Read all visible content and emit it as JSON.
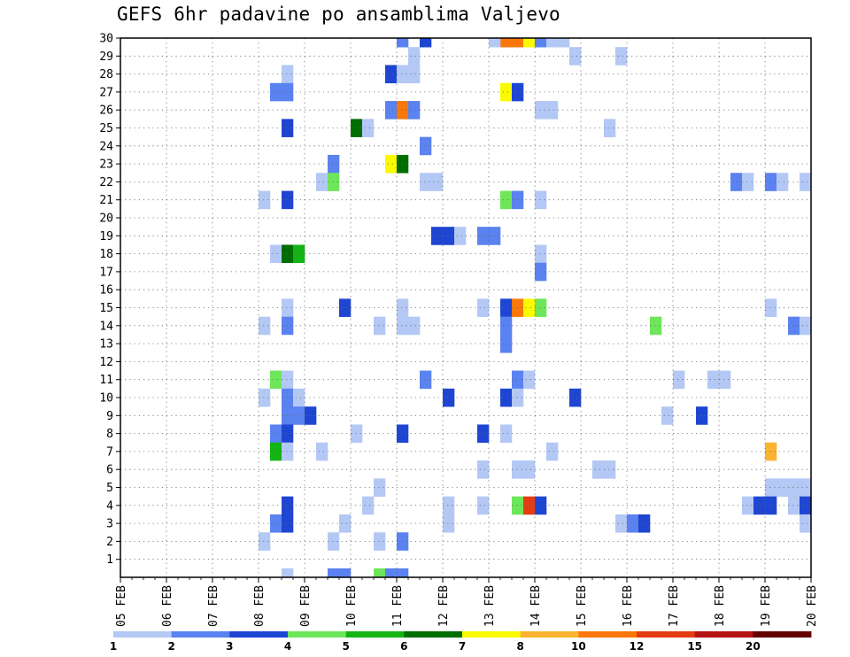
{
  "title": "GEFS 6hr padavine po ansamblima Valjevo",
  "chart_data": {
    "type": "heatmap",
    "title": "GEFS 6hr padavine po ansamblima Valjevo",
    "xlabel": "",
    "ylabel": "",
    "x_range": [
      "2020-02-05 00:00",
      "2020-02-20 00:00"
    ],
    "x_tick_labels": [
      "05 FEB",
      "06 FEB",
      "07 FEB",
      "08 FEB",
      "09 FEB",
      "10 FEB",
      "11 FEB",
      "12 FEB",
      "13 FEB",
      "14 FEB",
      "15 FEB",
      "16 FEB",
      "17 FEB",
      "18 FEB",
      "19 FEB",
      "20 FEB"
    ],
    "y_range": [
      0,
      30
    ],
    "y_tick_labels": [
      "1",
      "2",
      "3",
      "4",
      "5",
      "6",
      "7",
      "8",
      "9",
      "10",
      "11",
      "12",
      "13",
      "14",
      "15",
      "16",
      "17",
      "18",
      "19",
      "20",
      "21",
      "22",
      "23",
      "24",
      "25",
      "26",
      "27",
      "28",
      "29",
      "30"
    ],
    "grid": true,
    "colorbar": {
      "placement": "bottom",
      "labels": [
        "1",
        "2",
        "3",
        "4",
        "5",
        "6",
        "7",
        "8",
        "10",
        "12",
        "15",
        "20"
      ],
      "bins": [
        {
          "min": 1,
          "max": 2,
          "color": "#b4c8f5"
        },
        {
          "min": 2,
          "max": 3,
          "color": "#5a82f0"
        },
        {
          "min": 3,
          "max": 4,
          "color": "#1e46d2"
        },
        {
          "min": 4,
          "max": 5,
          "color": "#6ee65a"
        },
        {
          "min": 5,
          "max": 6,
          "color": "#14b414"
        },
        {
          "min": 6,
          "max": 7,
          "color": "#006e00"
        },
        {
          "min": 7,
          "max": 8,
          "color": "#fafa00"
        },
        {
          "min": 8,
          "max": 10,
          "color": "#fab432"
        },
        {
          "min": 10,
          "max": 12,
          "color": "#fa780a"
        },
        {
          "min": 12,
          "max": 15,
          "color": "#e63c14"
        },
        {
          "min": 15,
          "max": 20,
          "color": "#b41414"
        },
        {
          "min": 20,
          "max": null,
          "color": "#640000"
        }
      ]
    },
    "cells": [
      {
        "t": "2020-02-13 06:00",
        "m": 30,
        "v": 10.5
      },
      {
        "t": "2020-02-13 12:00",
        "m": 30,
        "v": 10.5
      },
      {
        "t": "2020-02-13 18:00",
        "m": 30,
        "v": 7.5
      },
      {
        "t": "2020-02-14 00:00",
        "m": 30,
        "v": 2.5
      },
      {
        "t": "2020-02-14 06:00",
        "m": 30,
        "v": 1.5
      },
      {
        "t": "2020-02-14 12:00",
        "m": 30,
        "v": 1.5
      },
      {
        "t": "2020-02-13 00:00",
        "m": 30,
        "v": 1.5
      },
      {
        "t": "2020-02-11 00:00",
        "m": 30,
        "v": 2.5
      },
      {
        "t": "2020-02-11 12:00",
        "m": 30,
        "v": 3.5
      },
      {
        "t": "2020-02-11 06:00",
        "m": 29,
        "v": 1.5
      },
      {
        "t": "2020-02-14 18:00",
        "m": 29,
        "v": 1.5
      },
      {
        "t": "2020-02-15 18:00",
        "m": 29,
        "v": 1.5
      },
      {
        "t": "2020-02-08 12:00",
        "m": 28,
        "v": 1.5
      },
      {
        "t": "2020-02-10 18:00",
        "m": 28,
        "v": 3.5
      },
      {
        "t": "2020-02-11 00:00",
        "m": 28,
        "v": 1.5
      },
      {
        "t": "2020-02-11 06:00",
        "m": 28,
        "v": 1.5
      },
      {
        "t": "2020-02-08 06:00",
        "m": 27,
        "v": 2.5
      },
      {
        "t": "2020-02-08 12:00",
        "m": 27,
        "v": 2.5
      },
      {
        "t": "2020-02-13 06:00",
        "m": 27,
        "v": 7.5
      },
      {
        "t": "2020-02-13 12:00",
        "m": 27,
        "v": 3.5
      },
      {
        "t": "2020-02-10 18:00",
        "m": 26,
        "v": 2.5
      },
      {
        "t": "2020-02-11 00:00",
        "m": 26,
        "v": 10.5
      },
      {
        "t": "2020-02-11 06:00",
        "m": 26,
        "v": 2.5
      },
      {
        "t": "2020-02-14 00:00",
        "m": 26,
        "v": 1.5
      },
      {
        "t": "2020-02-14 06:00",
        "m": 26,
        "v": 1.5
      },
      {
        "t": "2020-02-08 12:00",
        "m": 25,
        "v": 3.5
      },
      {
        "t": "2020-02-10 00:00",
        "m": 25,
        "v": 6.5
      },
      {
        "t": "2020-02-10 06:00",
        "m": 25,
        "v": 1.5
      },
      {
        "t": "2020-02-15 12:00",
        "m": 25,
        "v": 1.5
      },
      {
        "t": "2020-02-11 12:00",
        "m": 24,
        "v": 2.5
      },
      {
        "t": "2020-02-09 12:00",
        "m": 23,
        "v": 2.5
      },
      {
        "t": "2020-02-10 18:00",
        "m": 23,
        "v": 7.5
      },
      {
        "t": "2020-02-11 00:00",
        "m": 23,
        "v": 6.5
      },
      {
        "t": "2020-02-09 06:00",
        "m": 22,
        "v": 1.5
      },
      {
        "t": "2020-02-09 12:00",
        "m": 22,
        "v": 4.5
      },
      {
        "t": "2020-02-11 12:00",
        "m": 22,
        "v": 1.5
      },
      {
        "t": "2020-02-11 18:00",
        "m": 22,
        "v": 1.5
      },
      {
        "t": "2020-02-18 06:00",
        "m": 22,
        "v": 2.5
      },
      {
        "t": "2020-02-18 12:00",
        "m": 22,
        "v": 1.5
      },
      {
        "t": "2020-02-19 00:00",
        "m": 22,
        "v": 2.5
      },
      {
        "t": "2020-02-19 06:00",
        "m": 22,
        "v": 1.5
      },
      {
        "t": "2020-02-19 18:00",
        "m": 22,
        "v": 1.5
      },
      {
        "t": "2020-02-08 00:00",
        "m": 21,
        "v": 1.5
      },
      {
        "t": "2020-02-08 12:00",
        "m": 21,
        "v": 3.5
      },
      {
        "t": "2020-02-13 06:00",
        "m": 21,
        "v": 4.5
      },
      {
        "t": "2020-02-13 12:00",
        "m": 21,
        "v": 2.5
      },
      {
        "t": "2020-02-14 00:00",
        "m": 21,
        "v": 1.5
      },
      {
        "t": "2020-02-11 18:00",
        "m": 19,
        "v": 3.5
      },
      {
        "t": "2020-02-12 00:00",
        "m": 19,
        "v": 3.5
      },
      {
        "t": "2020-02-12 06:00",
        "m": 19,
        "v": 1.5
      },
      {
        "t": "2020-02-12 18:00",
        "m": 19,
        "v": 2.5
      },
      {
        "t": "2020-02-13 00:00",
        "m": 19,
        "v": 2.5
      },
      {
        "t": "2020-02-08 06:00",
        "m": 18,
        "v": 1.5
      },
      {
        "t": "2020-02-08 12:00",
        "m": 18,
        "v": 6.5
      },
      {
        "t": "2020-02-08 18:00",
        "m": 18,
        "v": 5.5
      },
      {
        "t": "2020-02-14 00:00",
        "m": 18,
        "v": 1.5
      },
      {
        "t": "2020-02-14 00:00",
        "m": 17,
        "v": 2.5
      },
      {
        "t": "2020-02-08 12:00",
        "m": 15,
        "v": 1.5
      },
      {
        "t": "2020-02-09 18:00",
        "m": 15,
        "v": 3.5
      },
      {
        "t": "2020-02-11 00:00",
        "m": 15,
        "v": 1.5
      },
      {
        "t": "2020-02-12 18:00",
        "m": 15,
        "v": 1.5
      },
      {
        "t": "2020-02-13 06:00",
        "m": 15,
        "v": 3.5
      },
      {
        "t": "2020-02-13 12:00",
        "m": 15,
        "v": 10.5
      },
      {
        "t": "2020-02-13 18:00",
        "m": 15,
        "v": 7.5
      },
      {
        "t": "2020-02-14 00:00",
        "m": 15,
        "v": 4.5
      },
      {
        "t": "2020-02-19 00:00",
        "m": 15,
        "v": 1.5
      },
      {
        "t": "2020-02-08 00:00",
        "m": 14,
        "v": 1.5
      },
      {
        "t": "2020-02-08 12:00",
        "m": 14,
        "v": 2.5
      },
      {
        "t": "2020-02-10 12:00",
        "m": 14,
        "v": 1.5
      },
      {
        "t": "2020-02-11 00:00",
        "m": 14,
        "v": 1.5
      },
      {
        "t": "2020-02-11 06:00",
        "m": 14,
        "v": 1.5
      },
      {
        "t": "2020-02-13 06:00",
        "m": 14,
        "v": 2.5
      },
      {
        "t": "2020-02-16 12:00",
        "m": 14,
        "v": 4.5
      },
      {
        "t": "2020-02-19 12:00",
        "m": 14,
        "v": 2.5
      },
      {
        "t": "2020-02-19 18:00",
        "m": 14,
        "v": 1.5
      },
      {
        "t": "2020-02-13 06:00",
        "m": 13,
        "v": 2.5
      },
      {
        "t": "2020-02-08 06:00",
        "m": 11,
        "v": 4.5
      },
      {
        "t": "2020-02-08 12:00",
        "m": 11,
        "v": 1.5
      },
      {
        "t": "2020-02-11 12:00",
        "m": 11,
        "v": 2.5
      },
      {
        "t": "2020-02-13 12:00",
        "m": 11,
        "v": 2.5
      },
      {
        "t": "2020-02-13 18:00",
        "m": 11,
        "v": 1.5
      },
      {
        "t": "2020-02-17 00:00",
        "m": 11,
        "v": 1.5
      },
      {
        "t": "2020-02-17 18:00",
        "m": 11,
        "v": 1.5
      },
      {
        "t": "2020-02-18 00:00",
        "m": 11,
        "v": 1.5
      },
      {
        "t": "2020-02-08 00:00",
        "m": 10,
        "v": 1.5
      },
      {
        "t": "2020-02-08 12:00",
        "m": 10,
        "v": 2.5
      },
      {
        "t": "2020-02-08 18:00",
        "m": 10,
        "v": 1.5
      },
      {
        "t": "2020-02-12 00:00",
        "m": 10,
        "v": 3.5
      },
      {
        "t": "2020-02-13 06:00",
        "m": 10,
        "v": 3.5
      },
      {
        "t": "2020-02-13 12:00",
        "m": 10,
        "v": 1.5
      },
      {
        "t": "2020-02-14 18:00",
        "m": 10,
        "v": 3.5
      },
      {
        "t": "2020-02-08 12:00",
        "m": 9,
        "v": 2.5
      },
      {
        "t": "2020-02-08 18:00",
        "m": 9,
        "v": 2.5
      },
      {
        "t": "2020-02-09 00:00",
        "m": 9,
        "v": 3.5
      },
      {
        "t": "2020-02-16 18:00",
        "m": 9,
        "v": 1.5
      },
      {
        "t": "2020-02-17 12:00",
        "m": 9,
        "v": 3.5
      },
      {
        "t": "2020-02-08 06:00",
        "m": 8,
        "v": 2.5
      },
      {
        "t": "2020-02-08 12:00",
        "m": 8,
        "v": 3.5
      },
      {
        "t": "2020-02-10 00:00",
        "m": 8,
        "v": 1.5
      },
      {
        "t": "2020-02-11 00:00",
        "m": 8,
        "v": 3.5
      },
      {
        "t": "2020-02-12 18:00",
        "m": 8,
        "v": 3.5
      },
      {
        "t": "2020-02-13 06:00",
        "m": 8,
        "v": 1.5
      },
      {
        "t": "2020-02-08 06:00",
        "m": 7,
        "v": 5.5
      },
      {
        "t": "2020-02-08 12:00",
        "m": 7,
        "v": 1.5
      },
      {
        "t": "2020-02-09 06:00",
        "m": 7,
        "v": 1.5
      },
      {
        "t": "2020-02-14 06:00",
        "m": 7,
        "v": 1.5
      },
      {
        "t": "2020-02-19 00:00",
        "m": 7,
        "v": 9
      },
      {
        "t": "2020-02-12 18:00",
        "m": 6,
        "v": 1.5
      },
      {
        "t": "2020-02-13 12:00",
        "m": 6,
        "v": 1.5
      },
      {
        "t": "2020-02-13 18:00",
        "m": 6,
        "v": 1.5
      },
      {
        "t": "2020-02-15 06:00",
        "m": 6,
        "v": 1.5
      },
      {
        "t": "2020-02-15 12:00",
        "m": 6,
        "v": 1.5
      },
      {
        "t": "2020-02-10 12:00",
        "m": 5,
        "v": 1.5
      },
      {
        "t": "2020-02-19 00:00",
        "m": 5,
        "v": 1.5
      },
      {
        "t": "2020-02-19 06:00",
        "m": 5,
        "v": 1.5
      },
      {
        "t": "2020-02-19 12:00",
        "m": 5,
        "v": 1.5
      },
      {
        "t": "2020-02-19 18:00",
        "m": 5,
        "v": 1.5
      },
      {
        "t": "2020-02-08 12:00",
        "m": 4,
        "v": 3.5
      },
      {
        "t": "2020-02-10 06:00",
        "m": 4,
        "v": 1.5
      },
      {
        "t": "2020-02-12 00:00",
        "m": 4,
        "v": 1.5
      },
      {
        "t": "2020-02-12 18:00",
        "m": 4,
        "v": 1.5
      },
      {
        "t": "2020-02-13 12:00",
        "m": 4,
        "v": 4.5
      },
      {
        "t": "2020-02-13 18:00",
        "m": 4,
        "v": 13.5
      },
      {
        "t": "2020-02-14 00:00",
        "m": 4,
        "v": 3.5
      },
      {
        "t": "2020-02-18 12:00",
        "m": 4,
        "v": 1.5
      },
      {
        "t": "2020-02-18 18:00",
        "m": 4,
        "v": 3.5
      },
      {
        "t": "2020-02-19 00:00",
        "m": 4,
        "v": 3.5
      },
      {
        "t": "2020-02-19 12:00",
        "m": 4,
        "v": 1.5
      },
      {
        "t": "2020-02-19 18:00",
        "m": 4,
        "v": 3.5
      },
      {
        "t": "2020-02-08 06:00",
        "m": 3,
        "v": 2.5
      },
      {
        "t": "2020-02-08 12:00",
        "m": 3,
        "v": 3.5
      },
      {
        "t": "2020-02-09 18:00",
        "m": 3,
        "v": 1.5
      },
      {
        "t": "2020-02-12 00:00",
        "m": 3,
        "v": 1.5
      },
      {
        "t": "2020-02-15 18:00",
        "m": 3,
        "v": 1.5
      },
      {
        "t": "2020-02-16 00:00",
        "m": 3,
        "v": 2.5
      },
      {
        "t": "2020-02-16 06:00",
        "m": 3,
        "v": 3.5
      },
      {
        "t": "2020-02-19 18:00",
        "m": 3,
        "v": 1.5
      },
      {
        "t": "2020-02-08 00:00",
        "m": 2,
        "v": 1.5
      },
      {
        "t": "2020-02-09 12:00",
        "m": 2,
        "v": 1.5
      },
      {
        "t": "2020-02-10 12:00",
        "m": 2,
        "v": 1.5
      },
      {
        "t": "2020-02-11 00:00",
        "m": 2,
        "v": 2.5
      },
      {
        "t": "2020-02-08 12:00",
        "m": 0,
        "v": 1.5
      },
      {
        "t": "2020-02-09 12:00",
        "m": 0,
        "v": 2.5
      },
      {
        "t": "2020-02-09 18:00",
        "m": 0,
        "v": 2.5
      },
      {
        "t": "2020-02-10 12:00",
        "m": 0,
        "v": 4.5
      },
      {
        "t": "2020-02-10 18:00",
        "m": 0,
        "v": 2.5
      },
      {
        "t": "2020-02-11 00:00",
        "m": 0,
        "v": 2.5
      }
    ]
  }
}
